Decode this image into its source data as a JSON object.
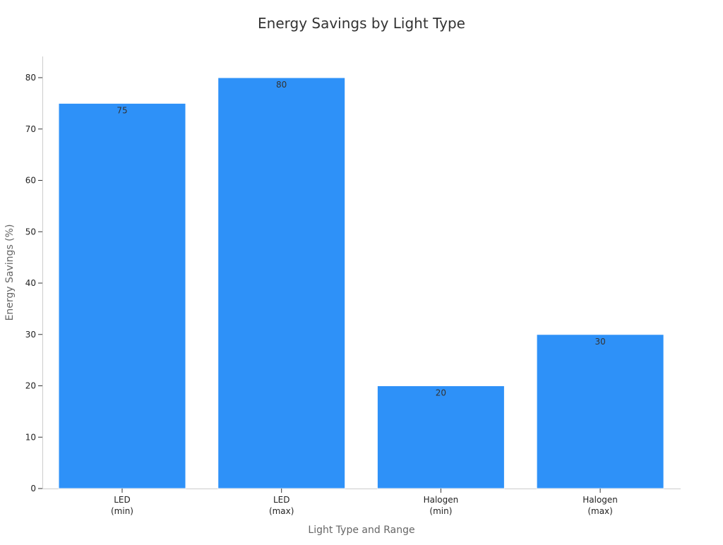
{
  "chart_data": {
    "type": "bar",
    "title": "Energy Savings by Light Type",
    "xlabel": "Light Type and Range",
    "ylabel": "Energy Savings (%)",
    "categories": [
      [
        "LED",
        "(min)"
      ],
      [
        "LED",
        "(max)"
      ],
      [
        "Halogen",
        "(min)"
      ],
      [
        "Halogen",
        "(max)"
      ]
    ],
    "values": [
      75,
      80,
      20,
      30
    ],
    "data_labels": [
      "75",
      "80",
      "20",
      "30"
    ],
    "ylim": [
      0,
      84
    ],
    "yticks": [
      0,
      10,
      20,
      30,
      40,
      50,
      60,
      70,
      80
    ],
    "grid": false,
    "legend": "none",
    "bar_color": "#2e91f8"
  }
}
